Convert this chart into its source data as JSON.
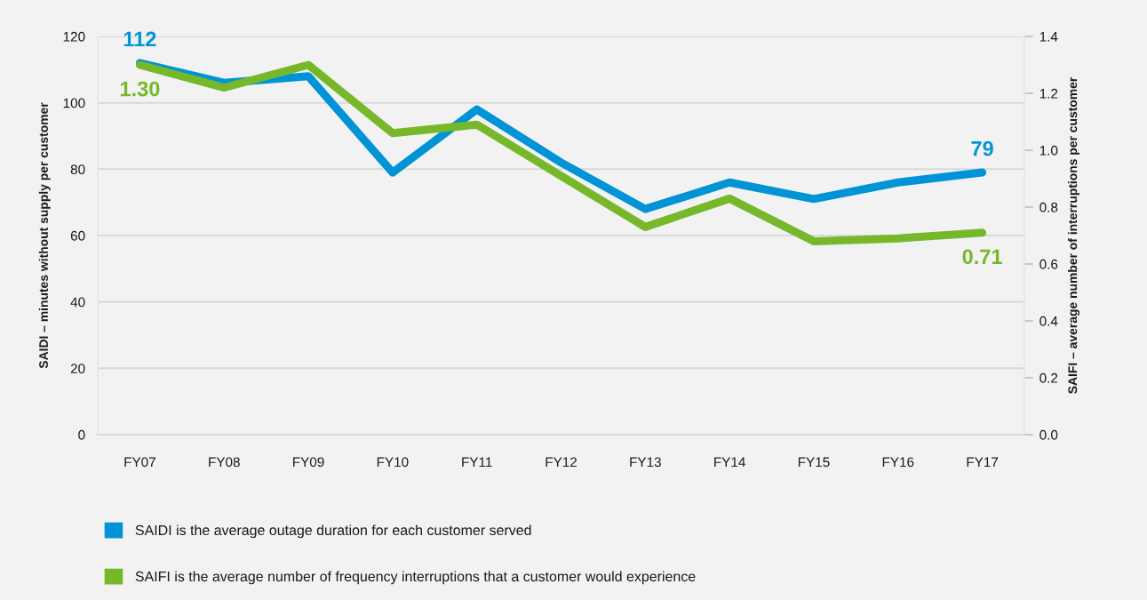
{
  "chart_data": {
    "type": "line",
    "ylabel": "SAIDI – minutes without supply per customer",
    "y2label": "SAIFI – average number of interruptions per customer",
    "categories": [
      "FY07",
      "FY08",
      "FY09",
      "FY10",
      "FY11",
      "FY12",
      "FY13",
      "FY14",
      "FY15",
      "FY16",
      "FY17"
    ],
    "series": [
      {
        "name": "SAIDI is the average outage duration for each customer served",
        "color": "#0094d6",
        "values": [
          112,
          106,
          108,
          79,
          98,
          82,
          68,
          76,
          71,
          76,
          79
        ],
        "value_labels": [
          "112",
          null,
          null,
          null,
          null,
          null,
          null,
          null,
          null,
          null,
          "79"
        ]
      },
      {
        "name": "SAIFI is the average number of frequency interruptions that a customer would experience",
        "color": "#76b82a",
        "axis": "y2",
        "values": [
          1.3,
          1.22,
          1.3,
          1.06,
          1.09,
          0.91,
          0.73,
          0.83,
          0.68,
          0.69,
          0.71
        ],
        "value_labels": [
          "1.30",
          null,
          null,
          null,
          null,
          null,
          null,
          null,
          null,
          null,
          "0.71"
        ]
      }
    ],
    "ylim": [
      0,
      120
    ],
    "yticks": [
      0,
      20,
      40,
      60,
      80,
      100,
      120
    ],
    "y2lim": [
      0,
      1.4
    ],
    "y2ticks": [
      {
        "value": 0,
        "label": "0.0"
      },
      0.2,
      0.4,
      0.6,
      0.8,
      {
        "value": 1,
        "label": "1.0"
      },
      1.2,
      1.4
    ],
    "grid": "y",
    "legend": "bottom",
    "line_style": "solid"
  }
}
